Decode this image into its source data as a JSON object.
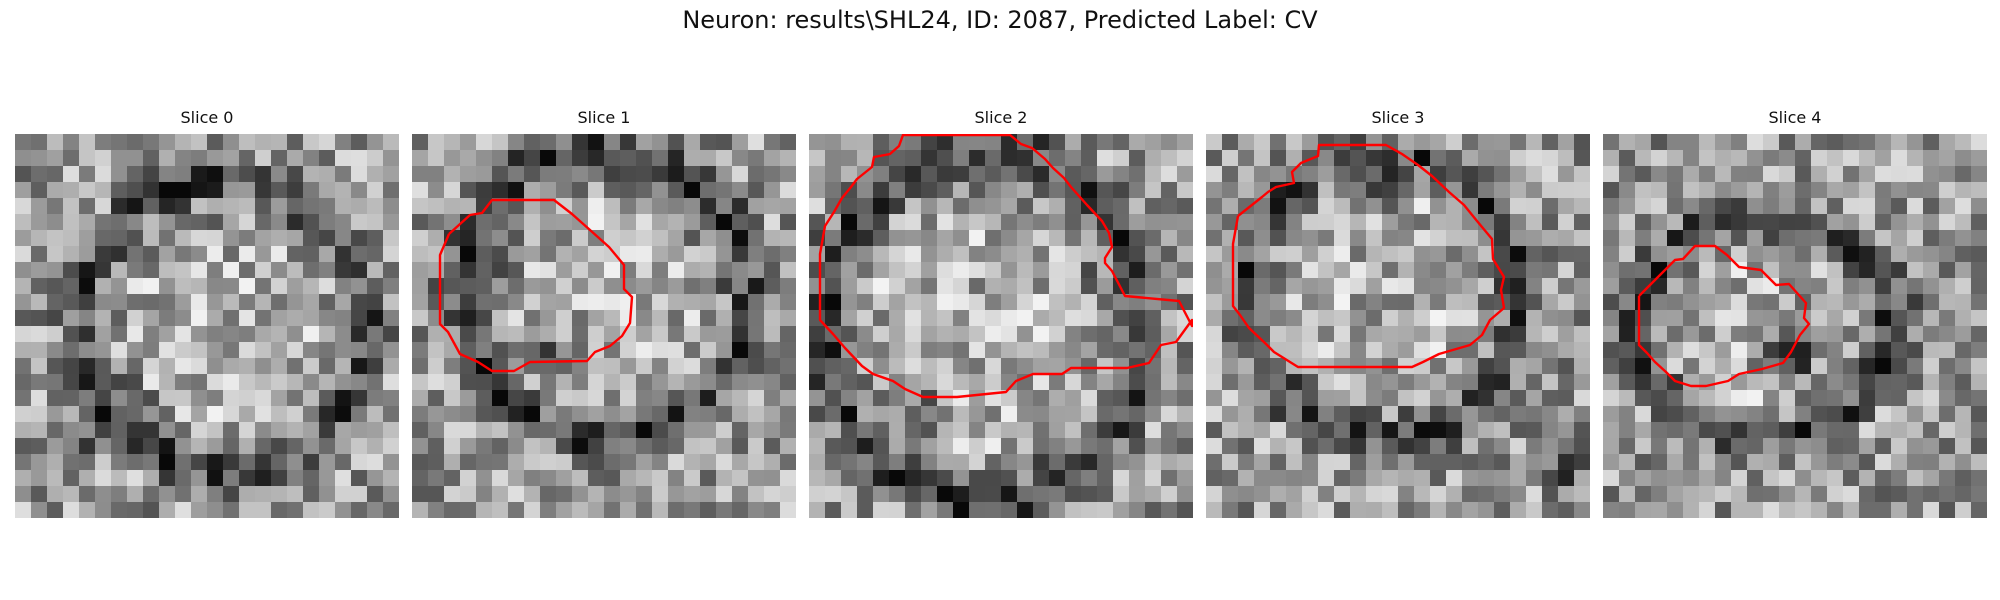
{
  "figure": {
    "title": "Neuron: results\\SHL24, ID: 2087, Predicted Label: CV",
    "contour_color": "#ff0000",
    "colormap": "gray",
    "slices": [
      {
        "title": "Slice 0"
      },
      {
        "title": "Slice 1"
      },
      {
        "title": "Slice 2"
      },
      {
        "title": "Slice 3"
      },
      {
        "title": "Slice 4"
      }
    ]
  }
}
